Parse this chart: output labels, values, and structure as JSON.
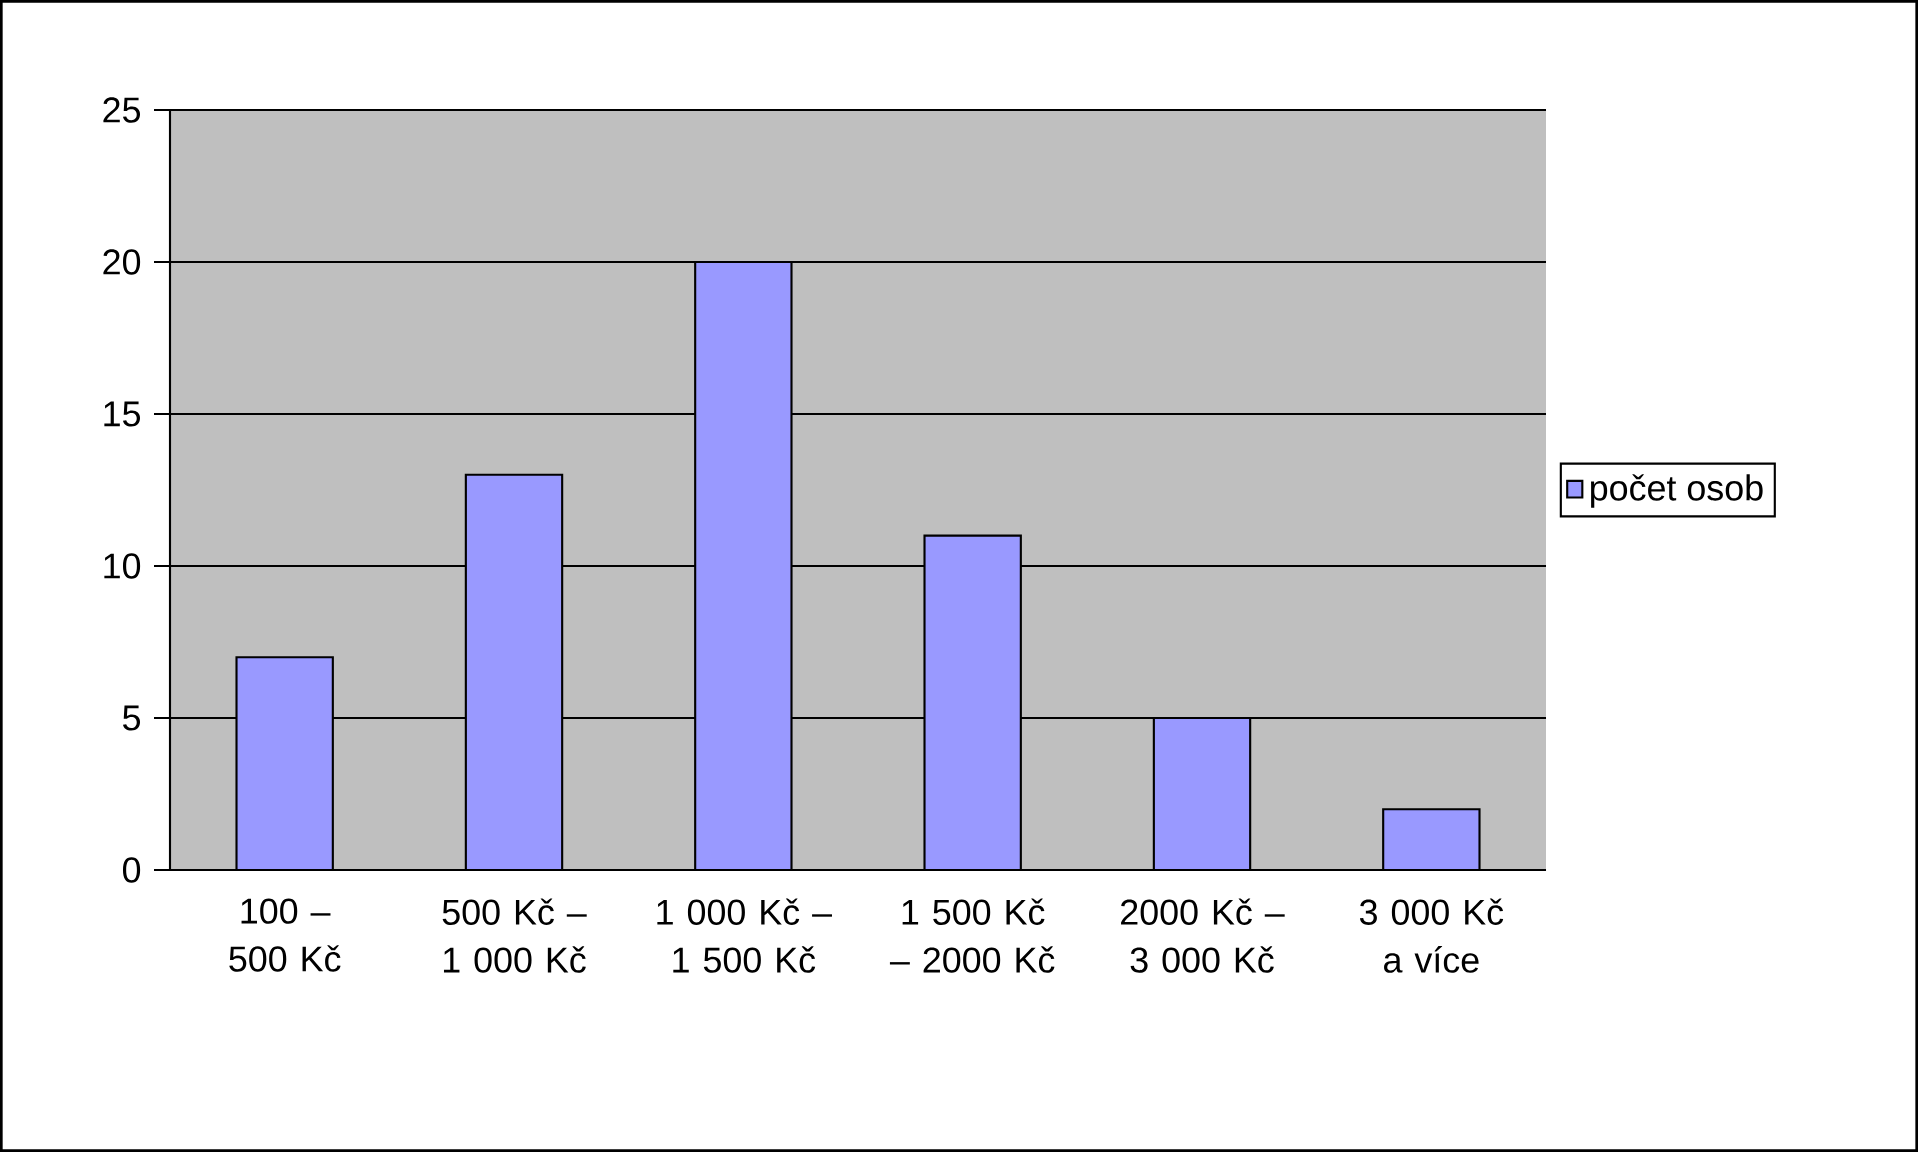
{
  "chart_data": {
    "type": "bar",
    "categories": [
      "100 – 500 Kč",
      "500 Kč – 1 000 Kč",
      "1 000 Kč – 1 500 Kč",
      "1 500 Kč – 2000 Kč",
      "2000 Kč – 3 000 Kč",
      "3 000 Kč a více"
    ],
    "series": [
      {
        "name": "počet osob",
        "color": "#9999ff",
        "values": [
          7,
          13,
          20,
          11,
          5,
          2
        ]
      }
    ],
    "ylim": [
      0,
      25
    ],
    "yticks": [
      0,
      5,
      10,
      15,
      20,
      25
    ],
    "grid": "y",
    "legend": "right"
  }
}
